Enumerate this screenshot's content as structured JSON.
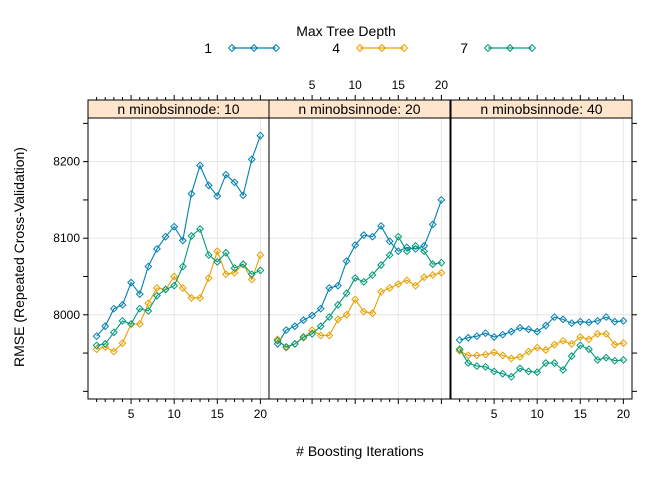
{
  "chart_data": {
    "type": "line",
    "legend": {
      "title": "Max Tree Depth",
      "placement": "top",
      "items": [
        {
          "label": "1",
          "color": "#0080b0"
        },
        {
          "label": "4",
          "color": "#e8a000"
        },
        {
          "label": "7",
          "color": "#009a7a"
        }
      ]
    },
    "xlabel": "# Boosting Iterations",
    "ylabel": "RMSE (Repeated Cross-Validation)",
    "xlim": [
      0,
      21
    ],
    "ylim": [
      7890,
      8257
    ],
    "xticks": [
      5,
      10,
      15,
      20
    ],
    "yticks": [
      8000,
      8100,
      8200
    ],
    "grid": true,
    "x": [
      1,
      2,
      3,
      4,
      5,
      6,
      7,
      8,
      9,
      10,
      11,
      12,
      13,
      14,
      15,
      16,
      17,
      18,
      19,
      20
    ],
    "panels": [
      {
        "strip": "n minobsinnode: 10",
        "series": [
          {
            "name": "1",
            "values": [
              7972,
              7985,
              8008,
              8013,
              8042,
              8027,
              8063,
              8086,
              8102,
              8115,
              8097,
              8158,
              8195,
              8169,
              8155,
              8183,
              8173,
              8156,
              8203,
              8234
            ]
          },
          {
            "name": "4",
            "values": [
              7955,
              7958,
              7952,
              7963,
              7988,
              7988,
              8015,
              8035,
              8033,
              8050,
              8035,
              8022,
              8022,
              8048,
              8083,
              8053,
              8055,
              8066,
              8046,
              8078
            ]
          },
          {
            "name": "7",
            "values": [
              7960,
              7962,
              7977,
              7992,
              7988,
              8008,
              8005,
              8025,
              8033,
              8038,
              8063,
              8103,
              8112,
              8078,
              8069,
              8081,
              8061,
              8066,
              8053,
              8058
            ]
          }
        ]
      },
      {
        "strip": "n minobsinnode: 20",
        "series": [
          {
            "name": "1",
            "values": [
              7962,
              7980,
              7985,
              7993,
              7999,
              8008,
              8035,
              8038,
              8070,
              8091,
              8104,
              8102,
              8116,
              8096,
              8083,
              8088,
              8086,
              8090,
              8118,
              8150
            ]
          },
          {
            "name": "4",
            "values": [
              7968,
              7957,
              7962,
              7970,
              7980,
              7973,
              7973,
              7994,
              8000,
              8020,
              8004,
              8002,
              8030,
              8035,
              8040,
              8045,
              8038,
              8049,
              8052,
              8055
            ]
          },
          {
            "name": "7",
            "values": [
              7966,
              7958,
              7962,
              7971,
              7975,
              7985,
              7997,
              8013,
              8028,
              8048,
              8043,
              8052,
              8065,
              8078,
              8102,
              8083,
              8090,
              8083,
              8066,
              8068
            ]
          }
        ]
      },
      {
        "strip": "n minobsinnode: 40",
        "series": [
          {
            "name": "1",
            "values": [
              7967,
              7970,
              7972,
              7976,
              7971,
              7974,
              7978,
              7983,
              7981,
              7978,
              7986,
              7997,
              7994,
              7989,
              7991,
              7990,
              7992,
              7997,
              7991,
              7992
            ]
          },
          {
            "name": "4",
            "values": [
              7953,
              7947,
              7947,
              7948,
              7951,
              7947,
              7943,
              7945,
              7952,
              7957,
              7954,
              7961,
              7966,
              7962,
              7971,
              7968,
              7975,
              7975,
              7961,
              7963
            ]
          },
          {
            "name": "7",
            "values": [
              7955,
              7937,
              7933,
              7932,
              7926,
              7923,
              7919,
              7930,
              7926,
              7925,
              7937,
              7937,
              7928,
              7946,
              7960,
              7955,
              7941,
              7944,
              7940,
              7941
            ]
          }
        ]
      }
    ]
  }
}
